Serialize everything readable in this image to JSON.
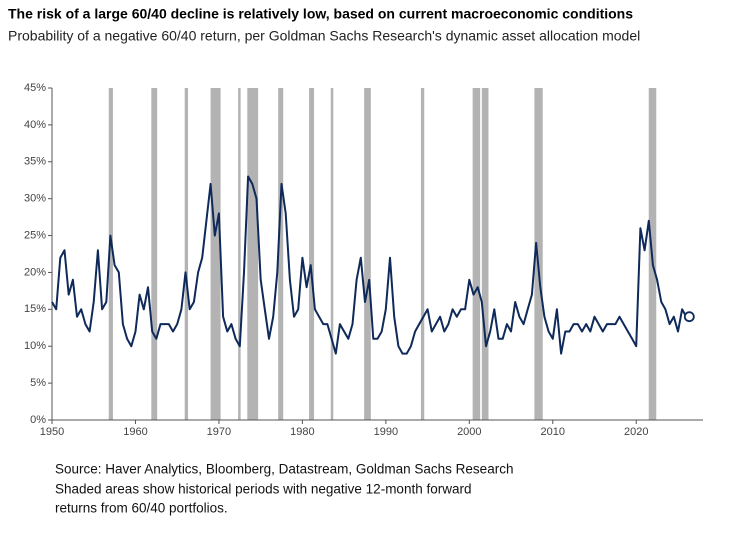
{
  "chart_data": {
    "type": "line",
    "title": "The risk of a large 60/40 decline is relatively low, based on current macroeconomic conditions",
    "subtitle": "Probability of a negative 60/40 return, per Goldman Sachs Research's dynamic asset allocation model",
    "notes": [
      "Source: Haver Analytics, Bloomberg, Datastream, Goldman Sachs Research",
      "Shaded areas show historical periods with negative 12-month forward",
      "returns from 60/40 portfolios."
    ],
    "x": [
      1950,
      1950.5,
      1951,
      1951.5,
      1952,
      1952.5,
      1953,
      1953.5,
      1954,
      1954.5,
      1955,
      1955.5,
      1956,
      1956.5,
      1957,
      1957.5,
      1958,
      1958.5,
      1959,
      1959.5,
      1960,
      1960.5,
      1961,
      1961.5,
      1962,
      1962.5,
      1963,
      1963.5,
      1964,
      1964.5,
      1965,
      1965.5,
      1966,
      1966.5,
      1967,
      1967.5,
      1968,
      1968.5,
      1969,
      1969.5,
      1970,
      1970.5,
      1971,
      1971.5,
      1972,
      1972.5,
      1973,
      1973.5,
      1974,
      1974.5,
      1975,
      1975.5,
      1976,
      1976.5,
      1977,
      1977.5,
      1978,
      1978.5,
      1979,
      1979.5,
      1980,
      1980.5,
      1981,
      1981.5,
      1982,
      1982.5,
      1983,
      1983.5,
      1984,
      1984.5,
      1985,
      1985.5,
      1986,
      1986.5,
      1987,
      1987.5,
      1988,
      1988.5,
      1989,
      1989.5,
      1990,
      1990.5,
      1991,
      1991.5,
      1992,
      1992.5,
      1993,
      1993.5,
      1994,
      1994.5,
      1995,
      1995.5,
      1996,
      1996.5,
      1997,
      1997.5,
      1998,
      1998.5,
      1999,
      1999.5,
      2000,
      2000.5,
      2001,
      2001.5,
      2002,
      2002.5,
      2003,
      2003.5,
      2004,
      2004.5,
      2005,
      2005.5,
      2006,
      2006.5,
      2007,
      2007.5,
      2008,
      2008.5,
      2009,
      2009.5,
      2010,
      2010.5,
      2011,
      2011.5,
      2012,
      2012.5,
      2013,
      2013.5,
      2014,
      2014.5,
      2015,
      2015.5,
      2016,
      2016.5,
      2017,
      2017.5,
      2018,
      2018.5,
      2019,
      2019.5,
      2020,
      2020.5,
      2021,
      2021.5,
      2022,
      2022.5,
      2023,
      2023.5,
      2024,
      2024.5,
      2025,
      2025.5,
      2026
    ],
    "series": [
      {
        "color": "#0f2a5a",
        "values": [
          16,
          15,
          22,
          23,
          17,
          19,
          14,
          15,
          13,
          12,
          16,
          23,
          15,
          16,
          25,
          21,
          20,
          13,
          11,
          10,
          12,
          17,
          15,
          18,
          12,
          11,
          13,
          13,
          13,
          12,
          13,
          15,
          20,
          15,
          16,
          20,
          22,
          27,
          32,
          25,
          28,
          14,
          12,
          13,
          11,
          10,
          20,
          33,
          32,
          30,
          19,
          15,
          11,
          14,
          20,
          32,
          28,
          19,
          14,
          15,
          22,
          18,
          21,
          15,
          14,
          13,
          13,
          11,
          9,
          13,
          12,
          11,
          13,
          19,
          22,
          16,
          19,
          11,
          11,
          12,
          15,
          22,
          14,
          10,
          9,
          9,
          10,
          12,
          13,
          14,
          15,
          12,
          13,
          14,
          12,
          13,
          15,
          14,
          15,
          15,
          19,
          17,
          18,
          16,
          10,
          12,
          15,
          11,
          11,
          13,
          12,
          16,
          14,
          13,
          15,
          17,
          24,
          18,
          14,
          12,
          11,
          15,
          9,
          12,
          12,
          13,
          13,
          12,
          13,
          12,
          14,
          13,
          12,
          13,
          13,
          13,
          14,
          13,
          12,
          11,
          10,
          26,
          23,
          27,
          21,
          19,
          16,
          15,
          13,
          14,
          12,
          15,
          14
        ]
      }
    ],
    "end_marker": true,
    "shaded_periods": [
      [
        1956.8,
        1957.3
      ],
      [
        1961.9,
        1962.6
      ],
      [
        1965.9,
        1966.3
      ],
      [
        1969.0,
        1970.2
      ],
      [
        1972.3,
        1972.6
      ],
      [
        1973.4,
        1974.7
      ],
      [
        1977.1,
        1977.7
      ],
      [
        1980.8,
        1981.4
      ],
      [
        1983.4,
        1983.7
      ],
      [
        1987.4,
        1988.2
      ],
      [
        1994.2,
        1994.6
      ],
      [
        2000.4,
        2001.3
      ],
      [
        2001.5,
        2002.3
      ],
      [
        2007.8,
        2008.8
      ],
      [
        2021.5,
        2022.4
      ]
    ],
    "xlim": [
      1950,
      2028
    ],
    "xticks": [
      1950,
      1960,
      1970,
      1980,
      1990,
      2000,
      2010,
      2020
    ],
    "ylim": [
      0,
      45
    ],
    "yticks": [
      {
        "value": 0,
        "label": "0%"
      },
      {
        "value": 5,
        "label": "5%"
      },
      {
        "value": 10,
        "label": "10%"
      },
      {
        "value": 15,
        "label": "15%"
      },
      {
        "value": 20,
        "label": "20%"
      },
      {
        "value": 25,
        "label": "25%"
      },
      {
        "value": 30,
        "label": "30%"
      },
      {
        "value": 35,
        "label": "35%"
      },
      {
        "value": 40,
        "label": "40%"
      },
      {
        "value": 45,
        "label": "45%"
      }
    ],
    "grid": false
  }
}
